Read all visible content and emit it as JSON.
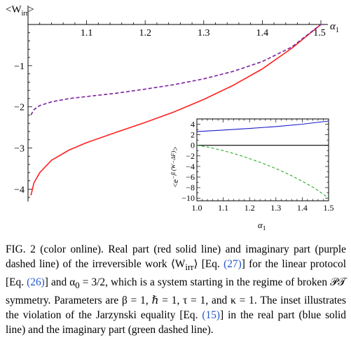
{
  "chart_data": [
    {
      "type": "line",
      "ylabel": "<W",
      "ylabel_sub": "irr",
      "ylabel_close": ">",
      "xlabel": "α",
      "xlabel_sub": "1",
      "xlim": [
        1.0,
        1.5
      ],
      "ylim": [
        -4.3,
        0.0
      ],
      "x_ticks": [
        1.1,
        1.2,
        1.3,
        1.4,
        1.5
      ],
      "x_tick_labels": [
        "1.1",
        "1.2",
        "1.3",
        "1.4",
        "1.5"
      ],
      "y_ticks": [
        -1,
        -2,
        -3,
        -4
      ],
      "y_tick_labels": [
        "−1",
        "−2",
        "−3",
        "−4"
      ],
      "series": [
        {
          "style": "solid",
          "color": "#ff2020",
          "x": [
            1.005,
            1.01,
            1.02,
            1.04,
            1.07,
            1.1,
            1.15,
            1.2,
            1.25,
            1.3,
            1.35,
            1.4,
            1.45,
            1.5
          ],
          "values": [
            -4.15,
            -3.85,
            -3.6,
            -3.3,
            -3.05,
            -2.87,
            -2.62,
            -2.38,
            -2.12,
            -1.82,
            -1.48,
            -1.08,
            -0.58,
            0.0
          ]
        },
        {
          "style": "dashed",
          "color": "#7a1fa0",
          "x": [
            1.005,
            1.01,
            1.02,
            1.04,
            1.07,
            1.1,
            1.15,
            1.2,
            1.25,
            1.3,
            1.35,
            1.4,
            1.45,
            1.5
          ],
          "values": [
            -2.2,
            -2.07,
            -1.97,
            -1.88,
            -1.8,
            -1.75,
            -1.67,
            -1.57,
            -1.46,
            -1.32,
            -1.14,
            -0.9,
            -0.55,
            0.0
          ]
        }
      ]
    },
    {
      "type": "line",
      "ylabel": "<e",
      "ylabel_sup": "−β (W−ΔF)",
      "ylabel_close": ">",
      "xlabel": "α",
      "xlabel_sub": "1",
      "xlim": [
        1.0,
        1.5
      ],
      "ylim": [
        -10.5,
        5.0
      ],
      "x_ticks": [
        1.0,
        1.1,
        1.2,
        1.3,
        1.4,
        1.5
      ],
      "x_tick_labels": [
        "1.0",
        "1.1",
        "1.2",
        "1.3",
        "1.4",
        "1.5"
      ],
      "y_ticks": [
        4,
        2,
        0,
        -2,
        -4,
        -6,
        -8,
        -10
      ],
      "y_tick_labels": [
        "4",
        "2",
        "0",
        "−2",
        "−4",
        "−6",
        "−8",
        "−10"
      ],
      "series": [
        {
          "style": "solid",
          "color": "#1a1acc",
          "x": [
            1.0,
            1.1,
            1.2,
            1.3,
            1.4,
            1.5
          ],
          "values": [
            2.6,
            2.9,
            3.2,
            3.55,
            4.0,
            4.6
          ]
        },
        {
          "style": "solid",
          "color": "#000000",
          "x": [
            1.0,
            1.5
          ],
          "values": [
            0.0,
            0.0
          ]
        },
        {
          "style": "dashed",
          "color": "#22aa22",
          "x": [
            1.0,
            1.05,
            1.1,
            1.15,
            1.2,
            1.25,
            1.3,
            1.35,
            1.4,
            1.45,
            1.5
          ],
          "values": [
            0.0,
            -0.4,
            -1.0,
            -1.7,
            -2.5,
            -3.4,
            -4.4,
            -5.5,
            -6.8,
            -8.2,
            -10.0
          ]
        }
      ]
    }
  ],
  "caption": {
    "fig_label": "FIG. 2",
    "p1": " (color online).   Real part (red solid line) and imaginary part (purple dashed line) of the irreversible work ⟨W",
    "p1_sub": "irr",
    "p2": "⟩ [Eq. ",
    "ref_27": "(27)",
    "p3": "] for the linear protocol [Eq. ",
    "ref_26": "(26)",
    "p4": "] and α",
    "p4_sub": "0",
    "p5": " = 3/2, which is a system starting in the regime of broken 𝒫𝒯 symmetry. Parameters are β = 1, ℏ = 1, τ = 1, and κ = 1. The inset illustrates the violation of the Jarzynski equality [Eq. ",
    "ref_15": "(15)",
    "p6": "] in the real part (blue solid line) and the imaginary part (green dashed line)."
  }
}
